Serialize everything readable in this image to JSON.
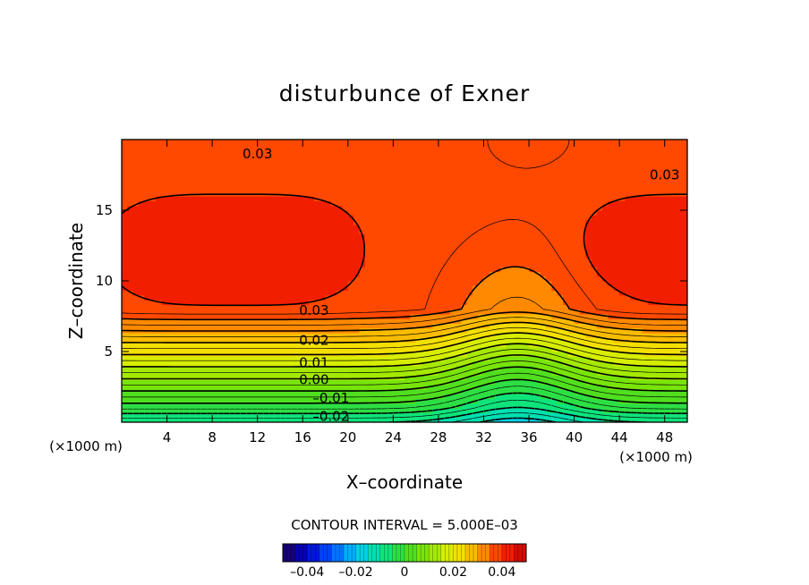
{
  "chart_data": {
    "type": "heatmap",
    "title": "disturbunce of Exner",
    "xlabel": "X–coordinate",
    "ylabel": "Z–coordinate",
    "x_unit_left": "(×1000 m)",
    "x_unit_right": "(×1000 m)",
    "xlim": [
      0,
      50
    ],
    "ylim": [
      0,
      20
    ],
    "x_ticks": [
      4,
      8,
      12,
      16,
      20,
      24,
      28,
      32,
      36,
      40,
      44,
      48
    ],
    "x_tick_labels": [
      "4",
      "8",
      "12",
      "16",
      "20",
      "24",
      "28",
      "32",
      "36",
      "40",
      "44",
      "48"
    ],
    "y_ticks": [
      5,
      10,
      15
    ],
    "y_tick_labels": [
      "5",
      "10",
      "15"
    ],
    "contour_interval_text": "CONTOUR INTERVAL = 5.000E–03",
    "contour_interval": 0.005,
    "contour_labels": [
      {
        "text": "0.03",
        "x": 12,
        "z": 19
      },
      {
        "text": "0.03",
        "x": 48,
        "z": 17.5
      },
      {
        "text": "0.03",
        "x": 17,
        "z": 7.9
      },
      {
        "text": "0.02",
        "x": 17,
        "z": 5.8
      },
      {
        "text": "0.01",
        "x": 17,
        "z": 4.2
      },
      {
        "text": "0.00",
        "x": 17,
        "z": 3.0
      },
      {
        "text": "–0.01",
        "x": 18.5,
        "z": 1.7
      },
      {
        "text": "–0.02",
        "x": 18.5,
        "z": 0.4
      }
    ],
    "field": {
      "max_top": 0.0386,
      "min_bottom": -0.022,
      "descent_per_km": 0.0058,
      "bulge_amplitude": 0.011,
      "bulge_center_x": 35,
      "bulge_width": 6,
      "core_centers_x": [
        10,
        51
      ],
      "core_center_z": 12.2,
      "core_amplitude": 0.0046,
      "core_halfwidth_x": 11,
      "core_halfwidth_z": 3.6
    },
    "colorbar": {
      "min": -0.05,
      "max": 0.05,
      "ticks": [
        -0.04,
        -0.02,
        0,
        0.02,
        0.04
      ],
      "tick_labels": [
        "–0.04",
        "–0.02",
        "0",
        "0.02",
        "0.04"
      ]
    }
  }
}
